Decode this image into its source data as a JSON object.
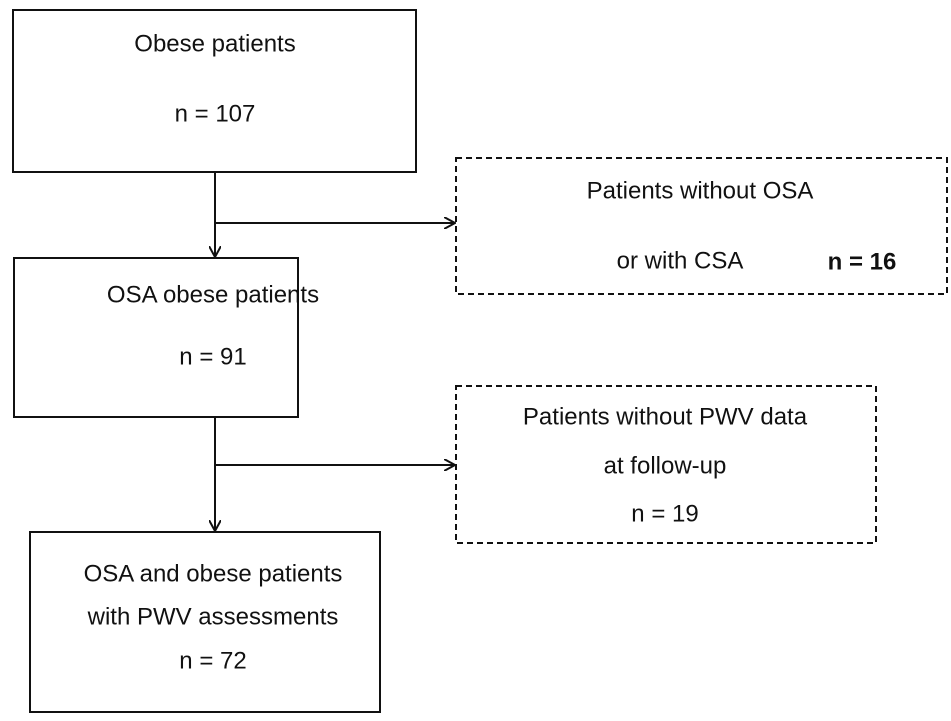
{
  "nodes": [
    {
      "lines": [
        "Obese patients",
        "n = 107"
      ]
    },
    {
      "lines": [
        "Patients without OSA",
        "or with CSA",
        "n = 16"
      ]
    },
    {
      "lines": [
        "OSA obese patients",
        "n = 91"
      ]
    },
    {
      "lines": [
        "Patients without PWV data",
        "at follow-up",
        "n = 19"
      ]
    },
    {
      "lines": [
        "OSA and obese patients",
        "with PWV assessments",
        "n = 72"
      ]
    }
  ]
}
